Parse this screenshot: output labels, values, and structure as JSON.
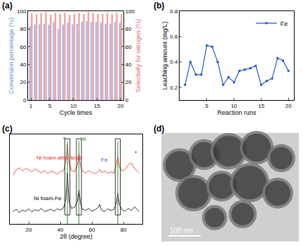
{
  "chart_data": [
    {
      "type": "bar",
      "panel": "(a)",
      "x": [
        1,
        2,
        3,
        4,
        5,
        6,
        7,
        8,
        9,
        10,
        11,
        12,
        13,
        14,
        15,
        16,
        17,
        18,
        19,
        20
      ],
      "xlabel": "Cycle times",
      "xlim": [
        0.4,
        20.6
      ],
      "xticks": [
        1,
        5,
        10,
        15,
        20
      ],
      "ylabel": "Conversion percentage (%)",
      "ylim": [
        0,
        100
      ],
      "yticks": [
        0,
        20,
        40,
        60,
        80,
        100
      ],
      "y2label": "Selectivity for nitrogen (%)",
      "y2lim": [
        0,
        100
      ],
      "y2ticks": [
        0,
        20,
        40,
        60,
        80,
        100
      ],
      "series": [
        {
          "color": "#a8bce6",
          "values": [
            83,
            85,
            86,
            86,
            85,
            88,
            80,
            85,
            87,
            85,
            86,
            88,
            89,
            88,
            88,
            87,
            86,
            86,
            88,
            87
          ]
        },
        {
          "color": "#f2a3a3",
          "axis": "y2",
          "values": [
            98,
            97,
            98,
            99,
            96,
            98,
            97,
            98,
            96,
            97,
            98,
            97,
            99,
            98,
            97,
            97,
            98,
            97,
            98,
            97
          ]
        }
      ]
    },
    {
      "type": "line",
      "panel": "(b)",
      "x": [
        1,
        2,
        3,
        4,
        5,
        6,
        7,
        8,
        9,
        10,
        11,
        12,
        13,
        14,
        15,
        16,
        17,
        18,
        19,
        20
      ],
      "xlabel": "Reaction runs",
      "xlim": [
        0,
        21
      ],
      "xticks": [
        5,
        10,
        15,
        20
      ],
      "ylabel": "Leaching amount (mg/L)",
      "ylim": [
        0.1,
        0.8
      ],
      "yticks": [
        0.2,
        0.4,
        0.6,
        0.8
      ],
      "legend": "upper right",
      "series": [
        {
          "name": "Fe",
          "color": "#2255cc",
          "marker": "square",
          "line_style": "solid",
          "values": [
            0.22,
            0.4,
            0.3,
            0.3,
            0.53,
            0.52,
            0.4,
            0.22,
            0.28,
            0.24,
            0.33,
            0.34,
            0.35,
            0.37,
            0.22,
            0.25,
            0.27,
            0.43,
            0.41,
            0.33
          ]
        }
      ]
    },
    {
      "type": "line",
      "panel": "(c)",
      "xlabel": "2θ (degree)",
      "xlim": [
        8,
        92
      ],
      "xticks": [
        20,
        40,
        60,
        80
      ],
      "ylim": [
        0,
        2.2
      ],
      "tick_labels": "x",
      "reference_lines": [
        44.5,
        51.8,
        76.4
      ],
      "series": [
        {
          "color": "#e03020",
          "x": [
            10,
            12,
            14,
            16,
            18,
            20,
            22,
            24,
            26,
            28,
            30,
            32,
            34,
            36,
            38,
            40,
            42,
            43.5,
            44.5,
            45.5,
            47,
            49,
            50.8,
            51.8,
            52.8,
            54,
            56,
            58,
            60,
            62,
            64,
            65,
            66,
            68,
            70,
            72,
            74,
            75.4,
            76.4,
            77.4,
            79,
            81,
            83,
            85,
            87,
            89,
            90
          ],
          "values": [
            1.2,
            1.32,
            1.38,
            1.3,
            1.36,
            1.33,
            1.28,
            1.35,
            1.3,
            1.26,
            1.31,
            1.24,
            1.29,
            1.27,
            1.22,
            1.28,
            1.3,
            1.55,
            1.95,
            1.5,
            1.32,
            1.28,
            1.45,
            1.75,
            1.42,
            1.3,
            1.25,
            1.31,
            1.27,
            1.23,
            1.29,
            1.34,
            1.26,
            1.3,
            1.24,
            1.28,
            1.25,
            1.45,
            1.65,
            1.4,
            1.3,
            1.33,
            1.45,
            1.5,
            1.36,
            1.28,
            1.25
          ]
        },
        {
          "color": "#000000",
          "x": [
            10,
            12,
            14,
            16,
            18,
            20,
            22,
            24,
            26,
            28,
            30,
            32,
            34,
            36,
            38,
            40,
            42,
            43.5,
            44.5,
            45.5,
            47,
            49,
            50.8,
            51.8,
            52.8,
            54,
            56,
            58,
            60,
            62,
            64,
            65,
            66,
            68,
            70,
            72,
            74,
            75.4,
            76.4,
            77.4,
            79,
            81,
            83,
            85,
            87,
            89,
            90
          ],
          "values": [
            0.3,
            0.36,
            0.28,
            0.34,
            0.31,
            0.37,
            0.29,
            0.35,
            0.32,
            0.38,
            0.3,
            0.33,
            0.36,
            0.31,
            0.37,
            0.34,
            0.39,
            0.6,
            1.25,
            0.55,
            0.38,
            0.41,
            0.55,
            0.85,
            0.5,
            0.36,
            0.33,
            0.38,
            0.31,
            0.35,
            0.4,
            0.48,
            0.34,
            0.3,
            0.37,
            0.33,
            0.36,
            0.5,
            0.75,
            0.48,
            0.35,
            0.31,
            0.38,
            0.33,
            0.42,
            0.34,
            0.3
          ]
        }
      ],
      "annotations": [
        {
          "text": "Ni foam-after tests",
          "x": 24,
          "y": 1.62,
          "color": "#e03020"
        },
        {
          "text": "Ni foam-Fe",
          "x": 22,
          "y": 0.62,
          "color": "#000000"
        },
        {
          "text": "*",
          "x": 41,
          "y": 2.08,
          "color": "#000000"
        },
        {
          "text": "Ni",
          "x": 52,
          "y": 2.08,
          "color": "#2a8a2a"
        },
        {
          "text": "Fe",
          "x": 65,
          "y": 1.58,
          "color": "#2255cc"
        },
        {
          "text": "*",
          "x": 86,
          "y": 1.75,
          "color": "#000000"
        }
      ]
    },
    {
      "type": "image",
      "panel": "(d)",
      "scale_bar": "100 nm"
    }
  ]
}
